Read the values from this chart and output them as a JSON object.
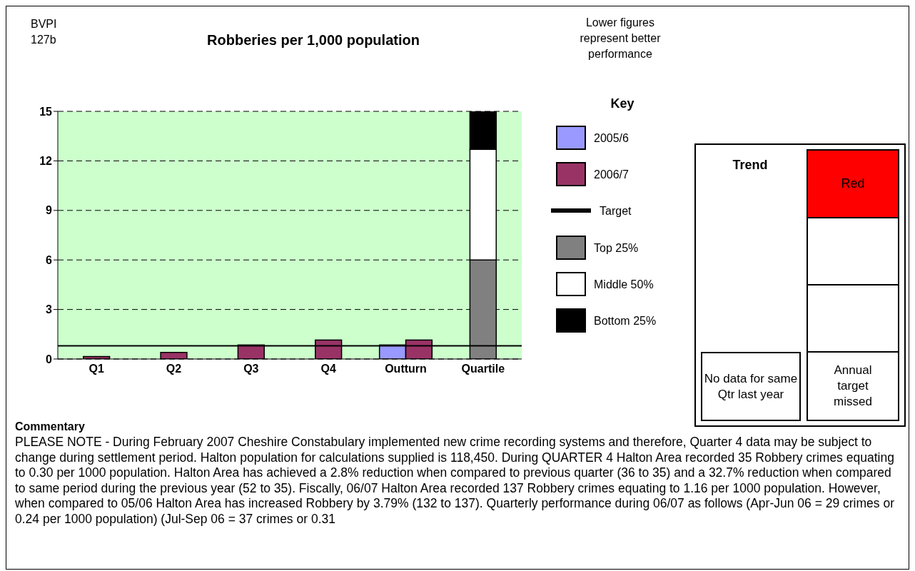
{
  "chart_data": {
    "type": "bar",
    "title": "Robberies per 1,000 population",
    "legend_title": "Key",
    "categories": [
      "Q1",
      "Q2",
      "Q3",
      "Q4",
      "Outturn",
      "Quartile"
    ],
    "series": [
      {
        "name": "2005/6",
        "color": "#9999ff",
        "values": [
          null,
          null,
          null,
          null,
          0.85,
          null
        ]
      },
      {
        "name": "2006/7",
        "color": "#993366",
        "values": [
          0.15,
          0.4,
          0.85,
          1.15,
          1.15,
          null
        ]
      },
      {
        "name": "Top 25%",
        "color": "#808080",
        "values": [
          null,
          null,
          null,
          null,
          null,
          6
        ]
      },
      {
        "name": "Middle 50%",
        "color": "#ffffff",
        "values": [
          null,
          null,
          null,
          null,
          null,
          6.7
        ],
        "base": [
          null,
          null,
          null,
          null,
          null,
          6
        ]
      },
      {
        "name": "Bottom 25%",
        "color": "#000000",
        "values": [
          null,
          null,
          null,
          null,
          null,
          2.3
        ],
        "base": [
          null,
          null,
          null,
          null,
          null,
          12.7
        ]
      }
    ],
    "ylim": [
      0,
      15
    ],
    "yticks": [
      0,
      3,
      6,
      9,
      12,
      15
    ],
    "grid": "y",
    "legend": "right",
    "ref_lines": [
      {
        "axis": "y",
        "value": 0.8,
        "label": "Target",
        "color": "#000000"
      }
    ],
    "annotations": [
      "BVPI 127b",
      "Lower figures represent better performance",
      "Trend",
      "Red",
      "No data for same Qtr last year",
      "Annual target missed",
      "Commentary",
      "PLEASE NOTE - During February 2007 Cheshire Constabulary implemented new crime recording systems and therefore, Quarter 4 data may be subject to change during settlement period. Halton population for calculations supplied is 118,450. During QUARTER 4 Halton Area recorded 35 Robbery crimes equating to 0.30 per 1000 population. Halton Area has achieved a 2.8% reduction when compared to previous quarter (36 to 35) and a 32.7% reduction when compared to same period during the previous year (52 to 35). Fiscally, 06/07 Halton Area recorded 137 Robbery crimes equating to 1.16 per 1000 population. However, when compared to 05/06 Halton Area has increased Robbery by 3.79% (132 to 137). Quarterly performance during 06/07 as follows (Apr-Jun 06 = 29 crimes or 0.24 per 1000 population) (Jul-Sep 06 = 37 crimes or 0.31"
    ]
  }
}
